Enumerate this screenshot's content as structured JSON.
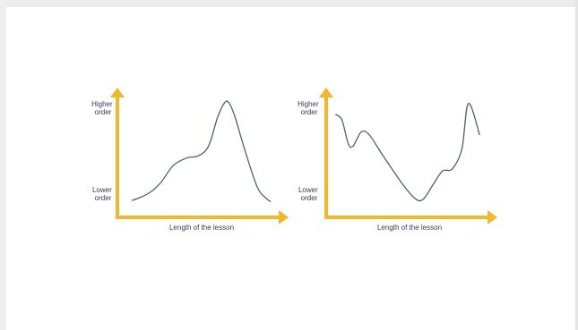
{
  "chart_data": [
    {
      "type": "line",
      "title": "",
      "xlabel": "Length of the lesson",
      "ylabel_top": "Higher order",
      "ylabel_bottom": "Lower order",
      "x": [
        0,
        0.06,
        0.13,
        0.2,
        0.28,
        0.37,
        0.45,
        0.52,
        0.58,
        0.63,
        0.66,
        0.7,
        0.77,
        0.85,
        0.91,
        0.94
      ],
      "y": [
        0.08,
        0.11,
        0.16,
        0.25,
        0.4,
        0.47,
        0.49,
        0.58,
        0.84,
        0.98,
        0.97,
        0.84,
        0.52,
        0.2,
        0.1,
        0.07
      ],
      "xlim": [
        0,
        1
      ],
      "ylim": [
        0,
        1
      ],
      "axis_color": "#f4b62a",
      "line_color": "#545d7a",
      "grid": false,
      "legend": false
    },
    {
      "type": "line",
      "title": "",
      "xlabel": "Length of the lesson",
      "ylabel_top": "Higher order",
      "ylabel_bottom": "Lower order",
      "x": [
        0.04,
        0.08,
        0.12,
        0.15,
        0.2,
        0.25,
        0.33,
        0.45,
        0.53,
        0.58,
        0.64,
        0.7,
        0.76,
        0.82,
        0.86,
        0.93
      ],
      "y": [
        0.87,
        0.82,
        0.6,
        0.58,
        0.71,
        0.68,
        0.5,
        0.24,
        0.1,
        0.09,
        0.22,
        0.35,
        0.37,
        0.55,
        0.97,
        0.68
      ],
      "xlim": [
        0,
        1
      ],
      "ylim": [
        0,
        1
      ],
      "axis_color": "#f4b62a",
      "line_color": "#545d7a",
      "grid": false,
      "legend": false
    }
  ]
}
